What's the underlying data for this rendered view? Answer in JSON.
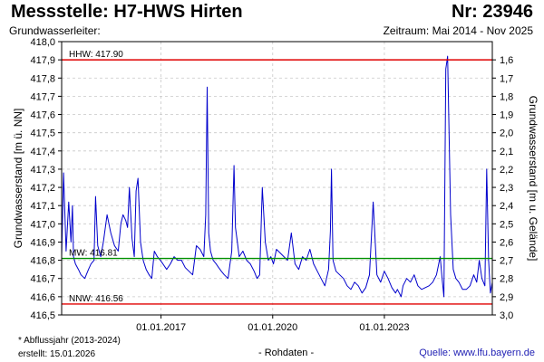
{
  "header": {
    "title": "Messstelle: H7-HWS Hirten",
    "number": "Nr: 23946",
    "aquifer": "Grundwasserleiter:",
    "period": "Zeitraum: Mai 2014 - Nov 2025"
  },
  "footer": {
    "note": "* Abflussjahr (2013-2024)",
    "created": "erstellt:  15.01.2026",
    "rawdata": "- Rohdaten -",
    "source": "Quelle: www.lfu.bayern.de"
  },
  "chart_data": {
    "type": "line",
    "ylabel": "Grundwasserstand [m ü. NN]",
    "y2label": "Grundwasserstand [m u. Gelände]",
    "ylim": [
      416.5,
      418.0
    ],
    "yticks": [
      "416,5",
      "416,6",
      "416,7",
      "416,8",
      "416,9",
      "417,0",
      "417,1",
      "417,2",
      "417,3",
      "417,4",
      "417,5",
      "417,6",
      "417,7",
      "417,8",
      "417,9",
      "418,0"
    ],
    "y2lim": [
      3.0,
      1.5
    ],
    "y2ticks": [
      "1,6",
      "1,7",
      "1,8",
      "1,9",
      "2,0",
      "2,1",
      "2,2",
      "2,3",
      "2,4",
      "2,5",
      "2,6",
      "2,7",
      "2,8",
      "2,9",
      "3,0"
    ],
    "xlim": [
      2014.33,
      2025.9
    ],
    "xticks": [
      {
        "x": 2017.0,
        "label": "01.01.2017"
      },
      {
        "x": 2020.0,
        "label": "01.01.2020"
      },
      {
        "x": 2023.0,
        "label": "01.01.2023"
      }
    ],
    "grid": true,
    "reference_lines": [
      {
        "label": "HHW: 417.90",
        "value": 417.9,
        "color": "#e00000"
      },
      {
        "label": "MW: 416.81",
        "value": 416.81,
        "color": "#009000"
      },
      {
        "label": "NNW: 416.56",
        "value": 416.56,
        "color": "#e00000"
      }
    ],
    "series": [
      {
        "color": "#0000cc",
        "x": [
          2014.33,
          2014.38,
          2014.45,
          2014.52,
          2014.58,
          2014.62,
          2014.65,
          2014.7,
          2014.78,
          2014.85,
          2014.95,
          2015.05,
          2015.12,
          2015.2,
          2015.24,
          2015.3,
          2015.38,
          2015.45,
          2015.55,
          2015.65,
          2015.75,
          2015.85,
          2015.92,
          2015.98,
          2016.05,
          2016.1,
          2016.15,
          2016.22,
          2016.28,
          2016.33,
          2016.38,
          2016.45,
          2016.52,
          2016.6,
          2016.68,
          2016.75,
          2016.82,
          2016.9,
          2016.98,
          2017.05,
          2017.15,
          2017.25,
          2017.35,
          2017.45,
          2017.55,
          2017.65,
          2017.75,
          2017.85,
          2017.95,
          2018.05,
          2018.15,
          2018.2,
          2018.24,
          2018.28,
          2018.33,
          2018.4,
          2018.48,
          2018.55,
          2018.62,
          2018.7,
          2018.8,
          2018.9,
          2018.96,
          2019.0,
          2019.05,
          2019.1,
          2019.2,
          2019.3,
          2019.4,
          2019.5,
          2019.58,
          2019.65,
          2019.72,
          2019.8,
          2019.88,
          2019.95,
          2020.02,
          2020.1,
          2020.2,
          2020.3,
          2020.4,
          2020.5,
          2020.6,
          2020.7,
          2020.8,
          2020.9,
          2021.0,
          2021.1,
          2021.2,
          2021.3,
          2021.4,
          2021.5,
          2021.55,
          2021.58,
          2021.62,
          2021.7,
          2021.8,
          2021.9,
          2022.0,
          2022.1,
          2022.2,
          2022.3,
          2022.4,
          2022.5,
          2022.6,
          2022.7,
          2022.8,
          2022.9,
          2023.0,
          2023.1,
          2023.2,
          2023.3,
          2023.35,
          2023.4,
          2023.45,
          2023.5,
          2023.6,
          2023.7,
          2023.8,
          2023.9,
          2024.0,
          2024.1,
          2024.2,
          2024.3,
          2024.4,
          2024.5,
          2024.55,
          2024.6,
          2024.65,
          2024.7,
          2024.78,
          2024.85,
          2024.92,
          2025.0,
          2025.1,
          2025.2,
          2025.3,
          2025.4,
          2025.48,
          2025.55,
          2025.62,
          2025.7,
          2025.75,
          2025.8,
          2025.85,
          2025.9
        ],
        "values": [
          416.82,
          417.28,
          416.85,
          417.12,
          416.9,
          417.1,
          416.82,
          416.78,
          416.75,
          416.72,
          416.7,
          416.75,
          416.78,
          416.8,
          417.15,
          416.88,
          416.82,
          416.9,
          417.05,
          416.95,
          416.88,
          416.85,
          417.0,
          417.05,
          417.02,
          416.98,
          417.2,
          416.92,
          416.82,
          417.18,
          417.25,
          416.9,
          416.8,
          416.75,
          416.72,
          416.7,
          416.85,
          416.82,
          416.8,
          416.78,
          416.75,
          416.78,
          416.82,
          416.8,
          416.8,
          416.76,
          416.74,
          416.72,
          416.88,
          416.86,
          416.82,
          417.05,
          417.75,
          416.95,
          416.85,
          416.8,
          416.78,
          416.76,
          416.74,
          416.72,
          416.7,
          416.85,
          417.32,
          416.98,
          416.9,
          416.82,
          416.85,
          416.8,
          416.78,
          416.74,
          416.7,
          416.72,
          417.2,
          416.9,
          416.8,
          416.82,
          416.78,
          416.86,
          416.84,
          416.82,
          416.8,
          416.95,
          416.78,
          416.75,
          416.82,
          416.8,
          416.86,
          416.78,
          416.74,
          416.7,
          416.66,
          416.75,
          416.96,
          417.3,
          416.8,
          416.74,
          416.72,
          416.7,
          416.66,
          416.64,
          416.68,
          416.66,
          416.62,
          416.65,
          416.72,
          417.12,
          416.72,
          416.68,
          416.74,
          416.7,
          416.65,
          416.62,
          416.64,
          416.62,
          416.6,
          416.66,
          416.7,
          416.68,
          416.72,
          416.66,
          416.64,
          416.65,
          416.66,
          416.68,
          416.72,
          416.82,
          416.7,
          416.6,
          417.85,
          417.92,
          417.05,
          416.75,
          416.7,
          416.68,
          416.64,
          416.64,
          416.66,
          416.72,
          416.68,
          416.8,
          416.7,
          416.66,
          417.3,
          416.8,
          416.62,
          416.68
        ]
      }
    ]
  }
}
